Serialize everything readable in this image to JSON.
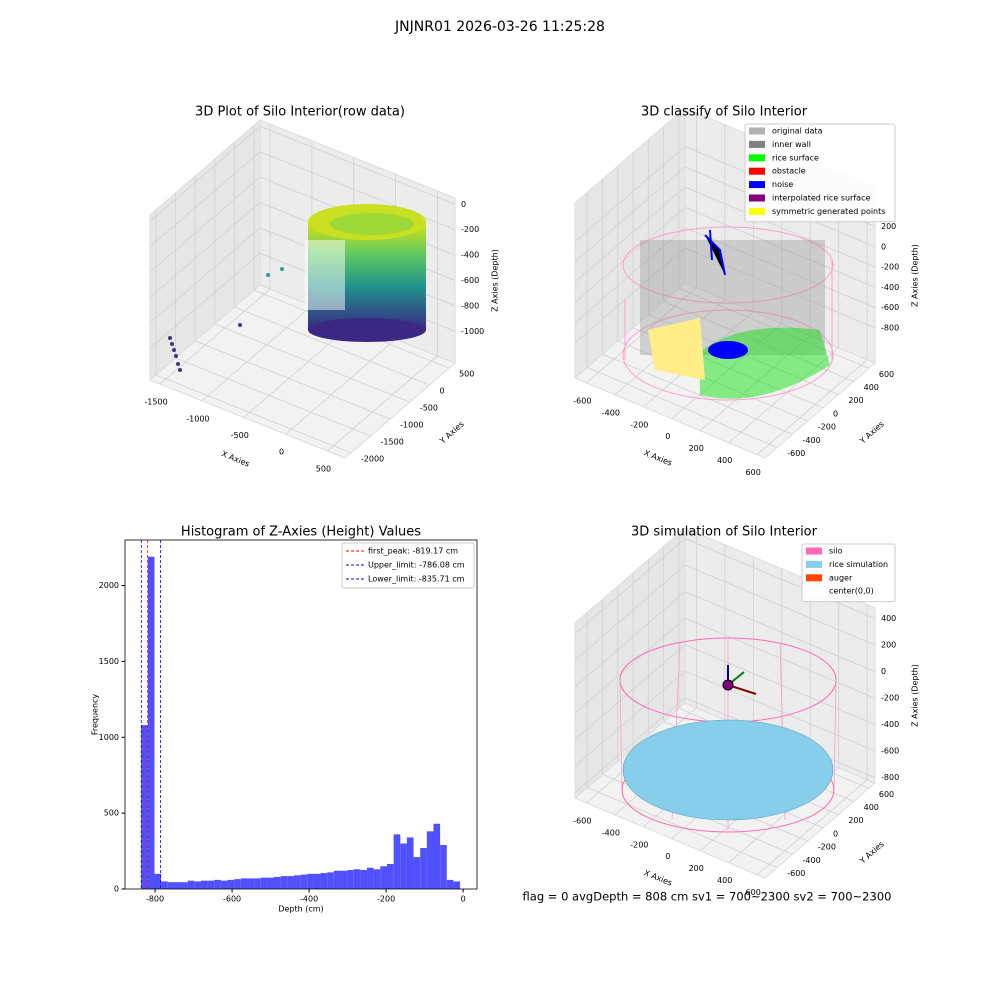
{
  "title": "JNJNR01 2026-03-26 11:25:28",
  "footer": "flag = 0     avgDepth = 808 cm  sv1 = 700~2300  sv2 = 700~2300",
  "chart_data": [
    {
      "type": "scatter3d",
      "title": "3D Plot of Silo Interior(row data)",
      "x_label": "X Axies",
      "y_label": "Y Axies",
      "z_label": "Z Axies (Depth)",
      "xlim": [
        -1620,
        710
      ],
      "xticks": [
        -1500,
        -1000,
        -500,
        0,
        500
      ],
      "ylim": [
        -2150,
        650
      ],
      "yticks": [
        -2000,
        -1500,
        -1000,
        -500,
        0,
        500
      ],
      "zlim": [
        -1250,
        50
      ],
      "zticks": [
        -1000,
        -800,
        -600,
        -400,
        -200,
        0
      ]
    },
    {
      "type": "scatter3d",
      "title": "3D classify of Silo Interior",
      "x_label": "X Axies",
      "y_label": "Y Axies",
      "z_label": "Z Axies (Depth)",
      "xlim": [
        -680,
        655
      ],
      "xticks": [
        -600,
        -400,
        -200,
        0,
        200,
        400,
        600
      ],
      "ylim": [
        -760,
        680
      ],
      "yticks": [
        -600,
        -400,
        -200,
        0,
        200,
        400,
        600
      ],
      "zlim": [
        -1145,
        580
      ],
      "zticks": [
        -800,
        -600,
        -400,
        -200,
        0,
        200
      ],
      "legend": "upper right",
      "series": [
        {
          "name": "original data",
          "color": "#b0b0b0"
        },
        {
          "name": "inner wall",
          "color": "#808080"
        },
        {
          "name": "rice surface",
          "color": "#00ff00"
        },
        {
          "name": "obstacle",
          "color": "#ff0000"
        },
        {
          "name": "noise",
          "color": "#0000ff"
        },
        {
          "name": "interpolated rice surface",
          "color": "#800080"
        },
        {
          "name": "symmetric generated points",
          "color": "#ffff00"
        }
      ]
    },
    {
      "type": "histogram",
      "title": "Histogram of Z-Axies (Height) Values",
      "x_label": "Depth (cm)",
      "y_label": "Frequency",
      "color": "#5050ff",
      "bins": [
        -836,
        -818.75,
        -801.5,
        -784.25,
        -767,
        -749.75,
        -732.5,
        -715.25,
        -698,
        -680.75,
        -663.5,
        -646.25,
        -629,
        -611.75,
        -594.5,
        -577.25,
        -560,
        -542.75,
        -525.5,
        -508.25,
        -491,
        -473.75,
        -456.5,
        -439.25,
        -422,
        -404.75,
        -387.5,
        -370.25,
        -353,
        -335.75,
        -318.5,
        -301.25,
        -284,
        -266.75,
        -249.5,
        -232.25,
        -215,
        -197.75,
        -180.5,
        -163.25,
        -146,
        -128.75,
        -111.5,
        -94.25,
        -77,
        -59.75,
        -42.5,
        -25.25,
        -8
      ],
      "counts": [
        1080,
        2190,
        100,
        50,
        45,
        45,
        45,
        55,
        50,
        55,
        55,
        60,
        55,
        60,
        65,
        70,
        70,
        70,
        75,
        75,
        80,
        85,
        85,
        90,
        95,
        100,
        100,
        105,
        110,
        120,
        120,
        125,
        130,
        125,
        140,
        130,
        150,
        165,
        360,
        300,
        340,
        210,
        270,
        380,
        430,
        290,
        60,
        50
      ],
      "xlim": [
        -878,
        36
      ],
      "xticks": [
        -800,
        -600,
        -400,
        -200,
        0
      ],
      "ylim": [
        0,
        2300
      ],
      "yticks": [
        0,
        500,
        1000,
        1500,
        2000
      ],
      "legend": "upper right",
      "vlines": [
        {
          "label": "first_peak: -819.17 cm",
          "value": -819.17,
          "color": "#ff0000"
        },
        {
          "label": "Upper_limit: -786.08 cm",
          "value": -786.08,
          "color": "#0000ff"
        },
        {
          "label": "Lower_limit: -835.71 cm",
          "value": -835.71,
          "color": "#0000ff"
        }
      ]
    },
    {
      "type": "surface3d",
      "title": "3D simulation of Silo Interior",
      "x_label": "X Axies",
      "y_label": "Y Axies",
      "z_label": "Z Axies (Depth)",
      "xlim": [
        -680,
        655
      ],
      "xticks": [
        -600,
        -400,
        -200,
        0,
        200,
        400,
        600
      ],
      "ylim": [
        -760,
        680
      ],
      "yticks": [
        -600,
        -400,
        -200,
        0,
        200,
        400,
        600
      ],
      "zlim": [
        -840,
        480
      ],
      "zticks": [
        -800,
        -600,
        -400,
        -200,
        0,
        200,
        400
      ],
      "legend": "upper right",
      "series": [
        {
          "name": "silo",
          "color": "#ff69b4"
        },
        {
          "name": "rice simulation",
          "color": "#87ceeb"
        },
        {
          "name": "auger",
          "color": "#ff4500"
        },
        {
          "name": "center(0,0)",
          "color": "#ffffff"
        }
      ]
    }
  ]
}
